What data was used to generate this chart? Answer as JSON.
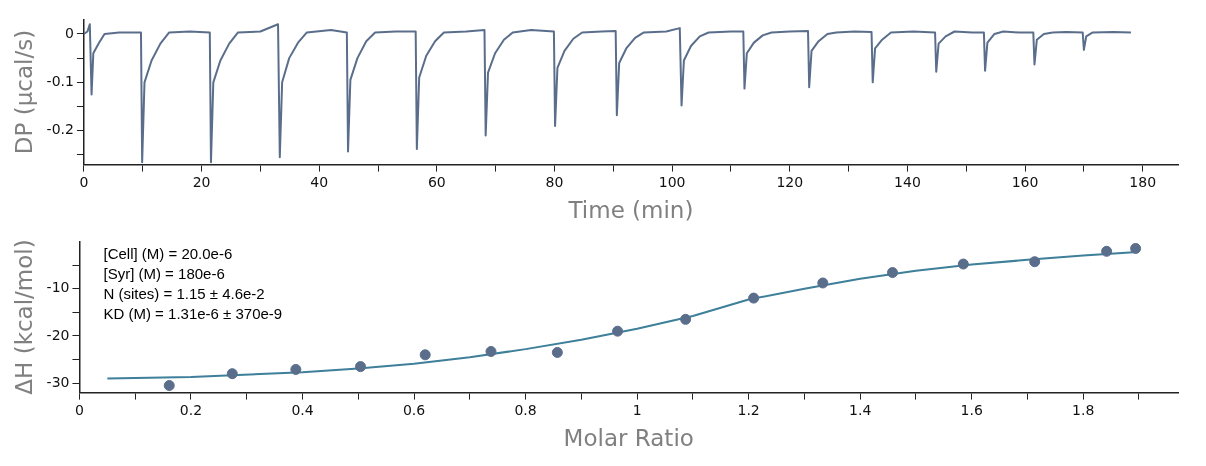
{
  "chart_data": [
    {
      "type": "line",
      "xlabel": "Time (min)",
      "ylabel": "DP (µcal/s)",
      "xlim": [
        0,
        186
      ],
      "ylim": [
        -0.27,
        0.03
      ],
      "xticks": [
        0,
        {
          "value": 10,
          "label": null
        },
        20,
        {
          "value": 30,
          "label": null
        },
        40,
        {
          "value": 50,
          "label": null
        },
        60,
        {
          "value": 70,
          "label": null
        },
        80,
        {
          "value": 90,
          "label": null
        },
        100,
        {
          "value": 110,
          "label": null
        },
        120,
        {
          "value": 130,
          "label": null
        },
        140,
        {
          "value": 150,
          "label": null
        },
        160,
        {
          "value": 170,
          "label": null
        },
        180
      ],
      "yticks": [
        {
          "value": -0.25,
          "label": null
        },
        {
          "value": -0.2,
          "label": "-0.2"
        },
        {
          "value": -0.15,
          "label": null
        },
        {
          "value": -0.1,
          "label": "-0.1"
        },
        {
          "value": -0.05,
          "label": null
        },
        0
      ],
      "grid": false,
      "legend": false,
      "marker": "none",
      "series": [
        {
          "color": "#5a6e8c",
          "x": [
            0,
            0.6,
            1.0,
            1.3,
            1.6,
            2.5,
            3.5,
            6,
            9.7,
            9.9,
            10.3,
            11.5,
            13,
            14.5,
            18,
            21.4,
            21.6,
            22,
            23.2,
            24.7,
            26.2,
            30,
            33.0,
            33.3,
            33.7,
            34.9,
            36.4,
            37.9,
            42,
            44.7,
            44.9,
            45.3,
            46.5,
            48,
            49.5,
            53,
            56.4,
            56.6,
            57,
            58.2,
            59.7,
            61.2,
            65,
            68.1,
            68.3,
            68.7,
            69.9,
            71.4,
            72.9,
            76,
            79.9,
            80.1,
            80.5,
            81.7,
            83.2,
            84.7,
            88,
            90.4,
            90.6,
            91,
            92.2,
            93.7,
            95.2,
            99,
            101.3,
            101.6,
            102,
            103.2,
            104.7,
            106.2,
            110,
            112.1,
            112.3,
            112.7,
            113.9,
            115.4,
            116.9,
            120,
            123.1,
            123.3,
            123.7,
            124.9,
            126.4,
            127.9,
            131,
            133.9,
            134.1,
            134.5,
            135.7,
            137.2,
            141,
            144.7,
            144.9,
            145.3,
            146.5,
            148,
            151,
            153.0,
            153.2,
            153.6,
            154.8,
            156.3,
            159,
            161.4,
            161.6,
            162,
            163.2,
            164.7,
            167,
            169.8,
            170,
            170.4,
            171.5,
            175,
            178
          ],
          "values": [
            0.0,
            0.005,
            0.02,
            -0.125,
            -0.04,
            -0.02,
            0.0,
            0.003,
            0.003,
            -0.265,
            -0.1,
            -0.055,
            -0.02,
            0.003,
            0.005,
            0.003,
            -0.265,
            -0.1,
            -0.055,
            -0.02,
            0.003,
            0.005,
            0.02,
            -0.255,
            -0.1,
            -0.05,
            -0.018,
            0.003,
            0.008,
            0.003,
            -0.243,
            -0.095,
            -0.05,
            -0.015,
            0.003,
            0.005,
            0.005,
            -0.238,
            -0.09,
            -0.045,
            -0.015,
            0.003,
            0.005,
            0.008,
            -0.21,
            -0.08,
            -0.04,
            -0.012,
            0.003,
            0.008,
            0.005,
            -0.19,
            -0.07,
            -0.035,
            -0.01,
            0.003,
            0.005,
            0.006,
            -0.168,
            -0.06,
            -0.03,
            -0.008,
            0.003,
            0.005,
            0.012,
            -0.148,
            -0.055,
            -0.025,
            -0.005,
            0.003,
            0.005,
            0.005,
            -0.113,
            -0.04,
            -0.018,
            -0.003,
            0.003,
            0.005,
            0.006,
            -0.11,
            -0.035,
            -0.015,
            0.0,
            0.003,
            0.005,
            0.004,
            -0.1,
            -0.03,
            -0.012,
            0.003,
            0.005,
            0.003,
            -0.078,
            -0.02,
            -0.005,
            0.005,
            0.003,
            0.003,
            -0.076,
            -0.018,
            0.0,
            0.005,
            0.003,
            0.003,
            -0.063,
            -0.012,
            0.0,
            0.003,
            0.004,
            0.003,
            -0.033,
            -0.005,
            0.003,
            0.004,
            0.003
          ]
        }
      ]
    },
    {
      "type": "scatter",
      "xlabel": "Molar Ratio",
      "ylabel": "ΔH (kcal/mol)",
      "xlim": [
        0,
        1.97
      ],
      "ylim": [
        -32,
        0
      ],
      "xticks": [
        0,
        {
          "value": 0.1,
          "label": null
        },
        0.2,
        {
          "value": 0.3,
          "label": null
        },
        0.4,
        {
          "value": 0.5,
          "label": null
        },
        0.6,
        {
          "value": 0.7,
          "label": null
        },
        0.8,
        {
          "value": 0.9,
          "label": null
        },
        1,
        {
          "value": 1.1,
          "label": null
        },
        1.2,
        {
          "value": 1.3,
          "label": null
        },
        1.4,
        {
          "value": 1.5,
          "label": null
        },
        1.6,
        {
          "value": 1.7,
          "label": null
        },
        1.8,
        {
          "value": 1.9,
          "label": null
        }
      ],
      "yticks": [
        -30,
        {
          "value": -25,
          "label": null
        },
        -20,
        {
          "value": -15,
          "label": null
        },
        -10,
        {
          "value": -5,
          "label": null
        }
      ],
      "grid": false,
      "legend": false,
      "annotations": [
        "[Cell] (M) = 20.0e-6",
        "[Syr] (M) = 180e-6",
        "N (sites) = 1.15 ± 4.6e-2",
        "KD (M) = 1.31e-6 ± 370e-9"
      ],
      "series": [
        {
          "type": "scatter",
          "color": "#5a6e8c",
          "marker": "circle",
          "x": [
            0.161,
            0.274,
            0.388,
            0.504,
            0.62,
            0.738,
            0.857,
            0.965,
            1.087,
            1.209,
            1.333,
            1.458,
            1.585,
            1.713,
            1.842,
            1.894
          ],
          "values": [
            -30.5,
            -28.0,
            -27.1,
            -26.5,
            -24.0,
            -23.3,
            -23.5,
            -19.0,
            -16.5,
            -12.0,
            -8.8,
            -6.6,
            -4.8,
            -4.3,
            -2.1,
            -1.5
          ]
        },
        {
          "type": "line",
          "color": "#3e7f9a",
          "marker": "none",
          "x": [
            0.05,
            0.2,
            0.4,
            0.5,
            0.6,
            0.7,
            0.8,
            0.9,
            1.0,
            1.1,
            1.2,
            1.3,
            1.4,
            1.5,
            1.6,
            1.7,
            1.8,
            1.89
          ],
          "values": [
            -29.0,
            -28.7,
            -27.7,
            -26.9,
            -25.9,
            -24.5,
            -22.8,
            -20.8,
            -18.5,
            -15.8,
            -12.3,
            -10.0,
            -7.9,
            -6.2,
            -4.9,
            -3.9,
            -3.0,
            -2.3
          ]
        }
      ]
    }
  ]
}
